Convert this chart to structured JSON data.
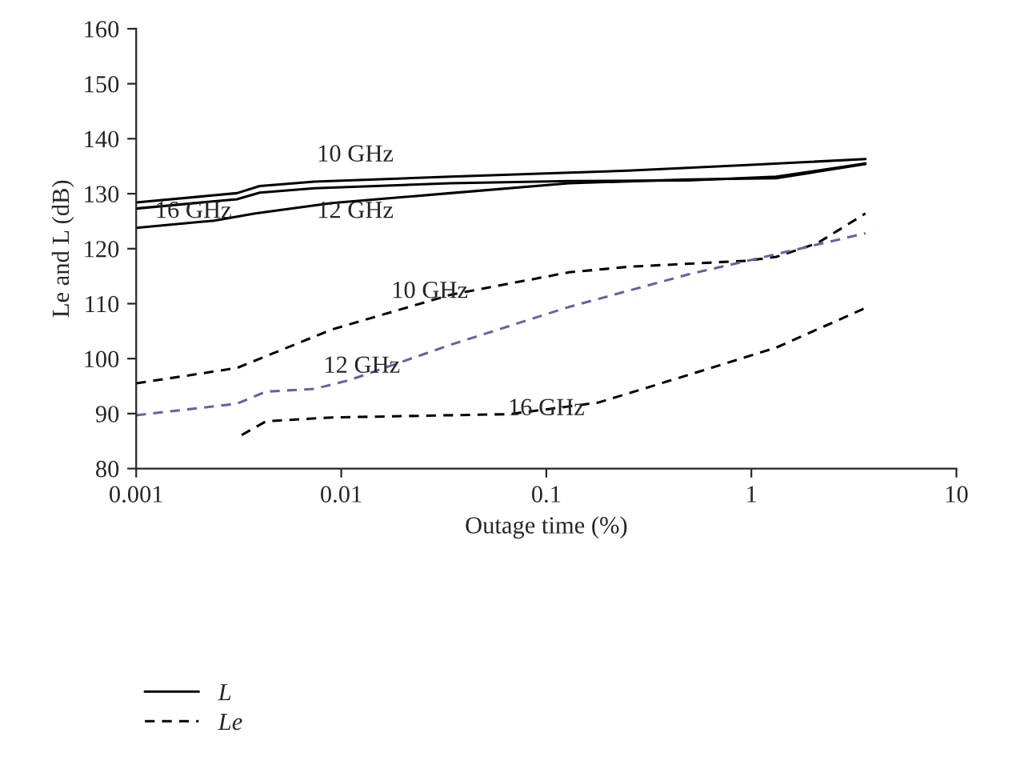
{
  "chart_data": {
    "type": "line",
    "xlabel": "Outage time (%)",
    "ylabel": "Le and L (dB)",
    "log": "x",
    "xlim": [
      0.001,
      10
    ],
    "xticks": [
      0.001,
      0.01,
      0.1,
      1,
      10
    ],
    "ylim": [
      80,
      160
    ],
    "yticks": [
      80,
      90,
      100,
      110,
      120,
      130,
      140,
      150,
      160
    ],
    "grid": false,
    "legend": "bottom",
    "marker": "none",
    "series": [
      {
        "name": "L",
        "color": "#000000",
        "line_style": "solid",
        "x": [
          0.001,
          0.0031,
          0.004,
          0.0074,
          0.034,
          0.25,
          0.95,
          3.6
        ],
        "values": [
          128.4,
          130.1,
          131.4,
          132.2,
          133.1,
          134.2,
          135.2,
          136.3
        ]
      },
      {
        "color": "#000000",
        "line_style": "solid",
        "x": [
          0.001,
          0.0031,
          0.004,
          0.0074,
          0.034,
          0.129,
          0.49,
          1.32,
          2.1,
          3.6
        ],
        "values": [
          127.3,
          129.0,
          130.2,
          131.0,
          131.9,
          132.3,
          132.4,
          133.1,
          134.2,
          135.5
        ]
      },
      {
        "color": "#000000",
        "line_style": "solid",
        "x": [
          0.001,
          0.0024,
          0.0038,
          0.009,
          0.034,
          0.129,
          0.49,
          1.32,
          2.1,
          3.6
        ],
        "values": [
          123.8,
          125.1,
          126.4,
          128.3,
          130.1,
          131.9,
          132.6,
          132.8,
          134.0,
          135.4
        ]
      },
      {
        "name": "Le",
        "color": "#000000",
        "line_style": "dashed",
        "x": [
          0.001,
          0.0031,
          0.009,
          0.034,
          0.129,
          0.25,
          0.95,
          1.32,
          2.1,
          3.6
        ],
        "values": [
          95.5,
          98.3,
          105.3,
          111.6,
          115.7,
          116.7,
          117.8,
          118.5,
          121.0,
          126.4
        ]
      },
      {
        "color": "#6b5fa0",
        "line_style": "dashed",
        "x": [
          0.001,
          0.0031,
          0.0043,
          0.0074,
          0.011,
          0.034,
          0.129,
          0.49,
          1.32,
          3.6
        ],
        "values": [
          89.7,
          91.8,
          94.0,
          94.5,
          96.1,
          102.5,
          109.4,
          115.3,
          119.0,
          122.8
        ]
      },
      {
        "color": "#000000",
        "line_style": "dashed",
        "x": [
          0.00327,
          0.0043,
          0.009,
          0.066,
          0.179,
          0.49,
          1.32,
          3.6
        ],
        "values": [
          86.1,
          88.6,
          89.3,
          89.9,
          92.0,
          97.0,
          102.0,
          109.2
        ]
      }
    ],
    "annotations": [
      {
        "text": "10 GHz",
        "x": 0.0117,
        "y": 132.5
      },
      {
        "text": "16 GHz",
        "x": 0.0019,
        "y": 128.3
      },
      {
        "text": "12 GHz",
        "x": 0.0117,
        "y": 128.7
      },
      {
        "text": "10 GHz",
        "x": 0.027,
        "y": 110.5
      },
      {
        "text": "12 GHz",
        "x": 0.0126,
        "y": 96.9
      },
      {
        "text": "16 GHz",
        "x": 0.1,
        "y": 90.8
      }
    ]
  }
}
